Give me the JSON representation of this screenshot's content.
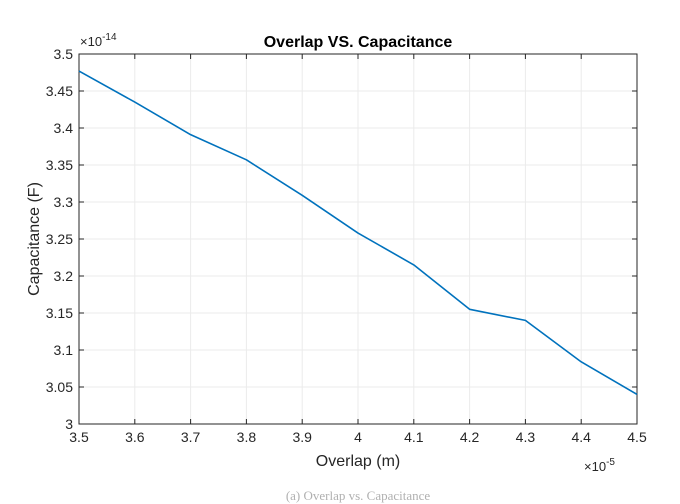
{
  "chart_data": {
    "type": "line",
    "title": "Overlap VS. Capacitance",
    "xlabel": "Overlap (m)",
    "ylabel": "Capacitance (F)",
    "x_multiplier": {
      "base": "×10",
      "exponent": "-5"
    },
    "y_multiplier": {
      "base": "×10",
      "exponent": "-14"
    },
    "xlim": [
      3.5,
      4.5
    ],
    "ylim": [
      3.0,
      3.5
    ],
    "x_ticks": [
      "3.5",
      "3.6",
      "3.7",
      "3.8",
      "3.9",
      "4",
      "4.1",
      "4.2",
      "4.3",
      "4.4",
      "4.5"
    ],
    "y_ticks": [
      "3",
      "3.05",
      "3.1",
      "3.15",
      "3.2",
      "3.25",
      "3.3",
      "3.35",
      "3.4",
      "3.45",
      "3.5"
    ],
    "grid": true,
    "series": [
      {
        "color": "#0072BD",
        "x": [
          3.5,
          3.6,
          3.7,
          3.8,
          3.9,
          4.0,
          4.1,
          4.2,
          4.3,
          4.4,
          4.5
        ],
        "y": [
          3.477,
          3.435,
          3.391,
          3.357,
          3.309,
          3.258,
          3.215,
          3.155,
          3.14,
          3.084,
          3.04
        ]
      }
    ]
  },
  "caption": "(a) Overlap vs. Capacitance"
}
